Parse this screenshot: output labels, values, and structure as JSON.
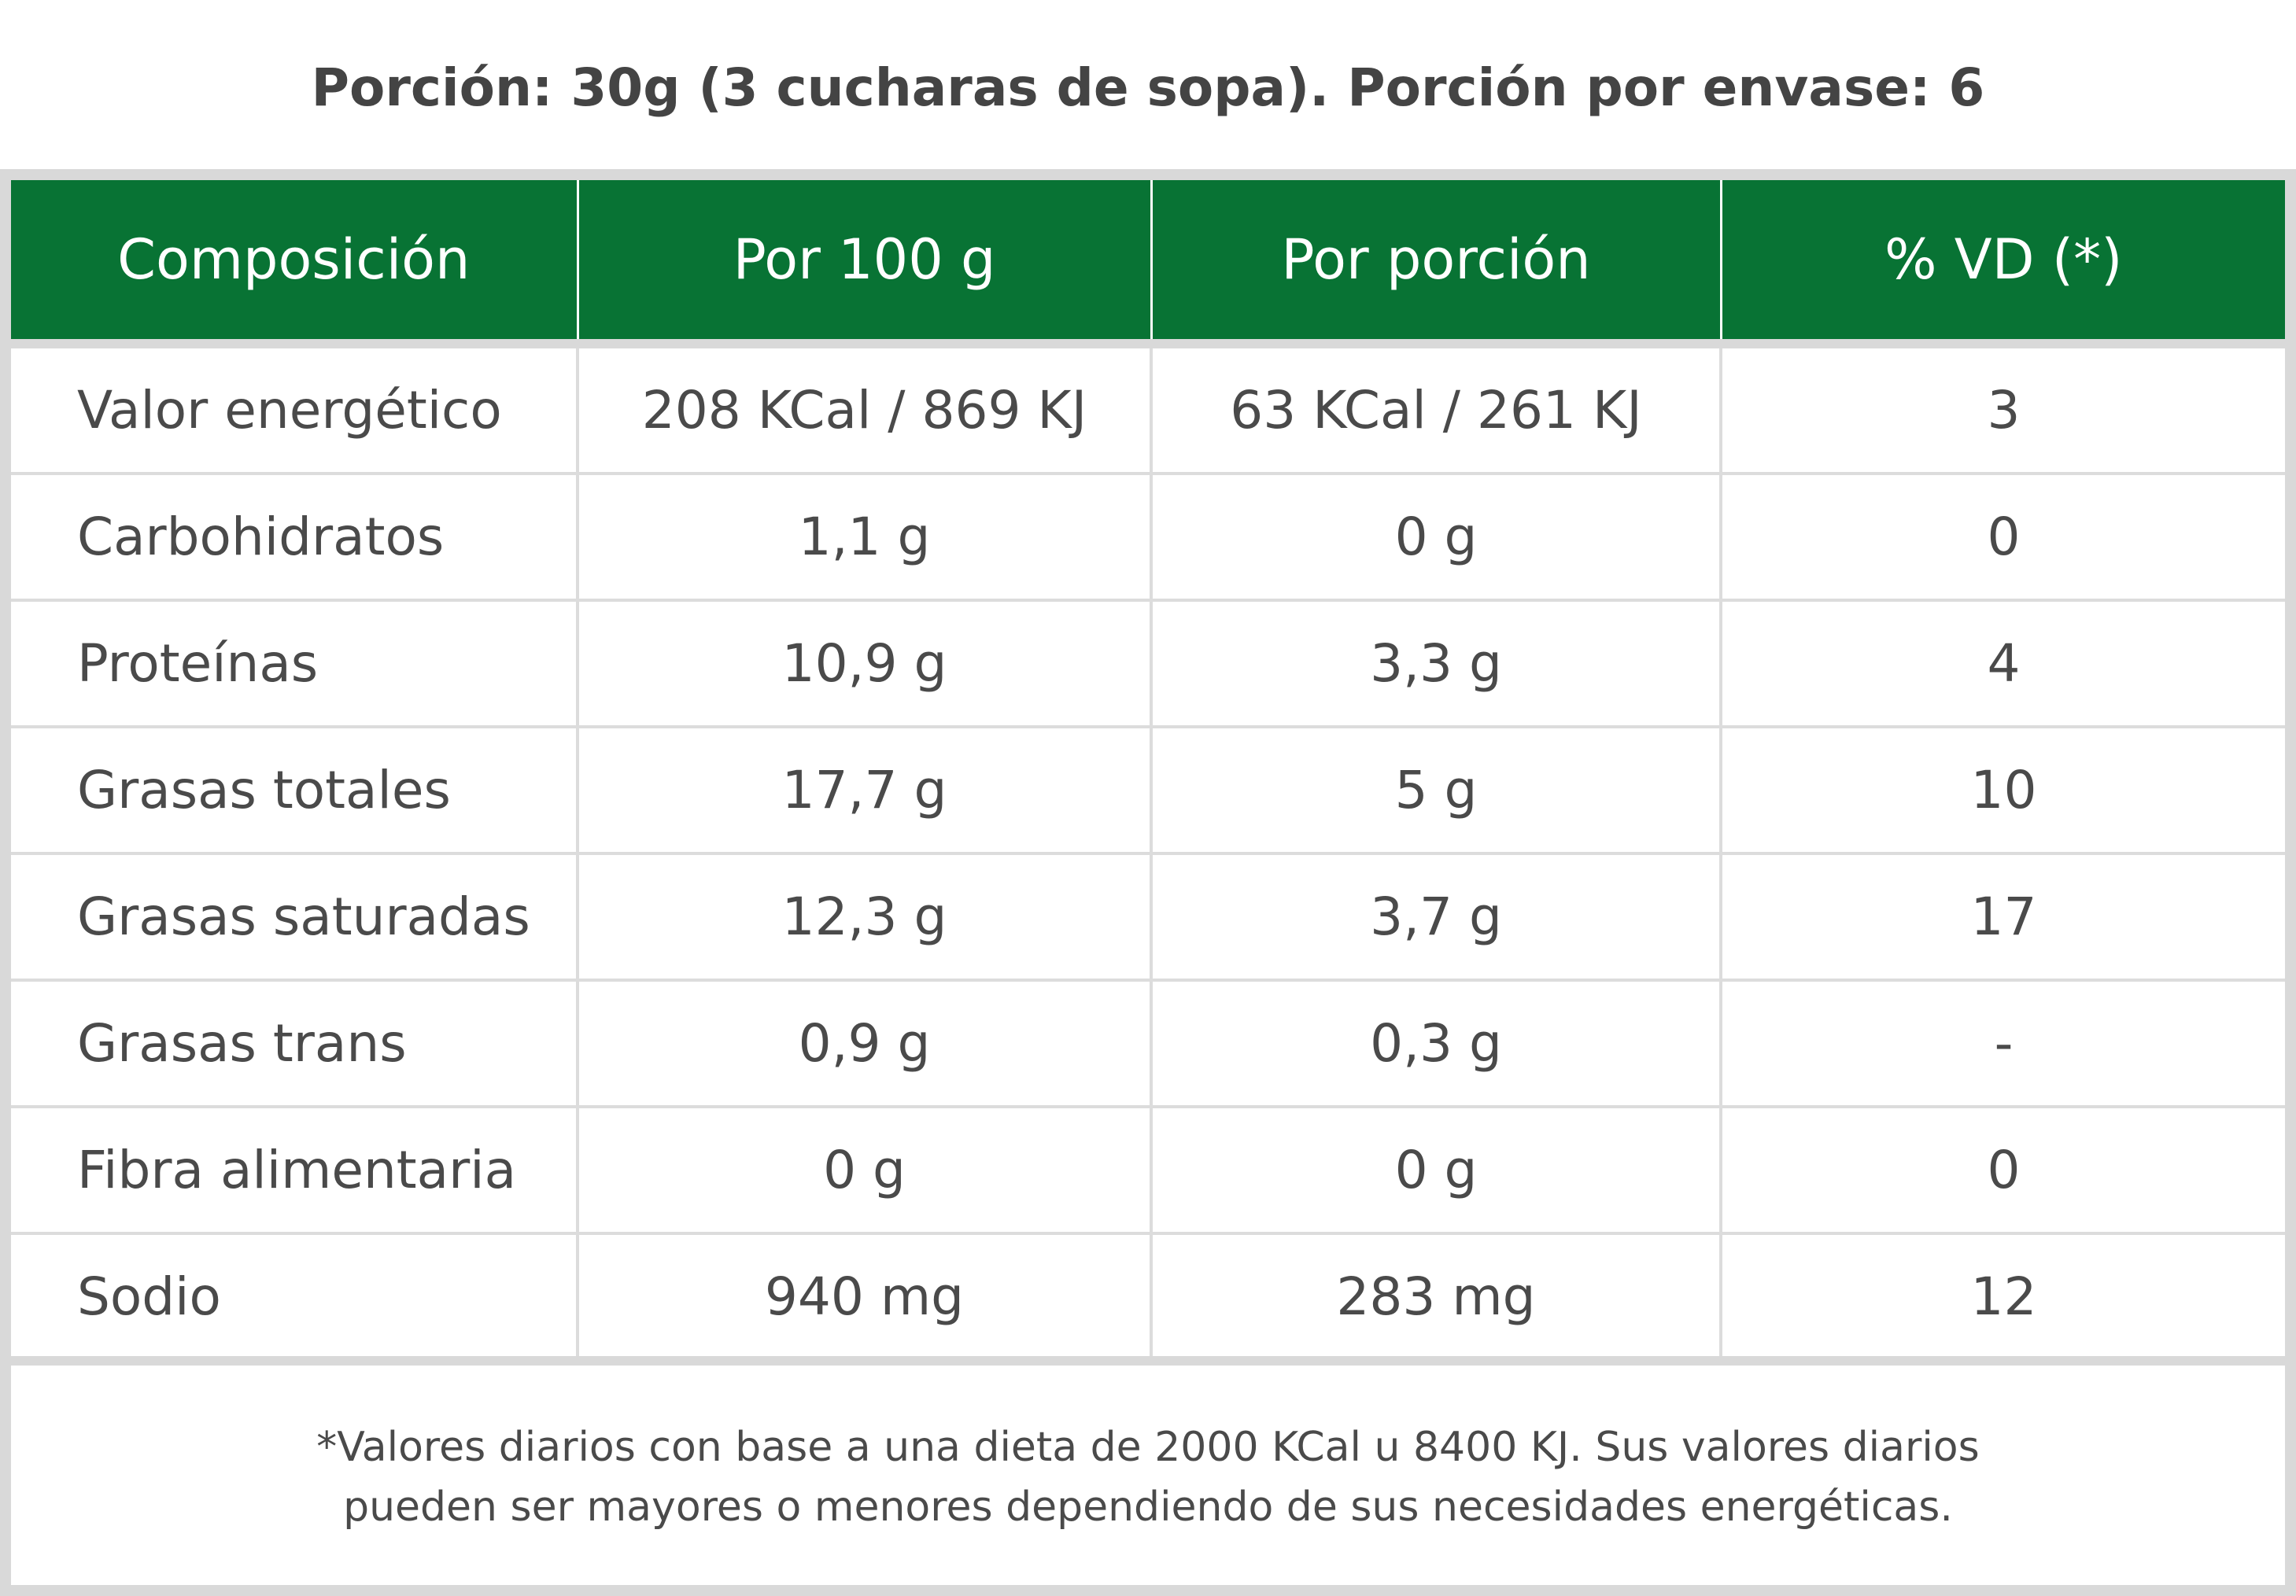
{
  "serving_info": "Porción: 30g (3 cucharas de sopa). Porción por envase: 6",
  "colors": {
    "header_background": "#087334",
    "header_text": "#ffffff",
    "border": "#d9d9d9",
    "body_text": "#4a4a4a"
  },
  "table": {
    "headers": [
      "Composición",
      "Por 100 g",
      "Por porción",
      "% VD (*)"
    ],
    "rows": [
      [
        "Valor energético",
        "208 KCal / 869 KJ",
        "63 KCal / 261 KJ",
        "3"
      ],
      [
        "Carbohidratos",
        "1,1 g",
        "0 g",
        "0"
      ],
      [
        "Proteínas",
        "10,9 g",
        "3,3 g",
        "4"
      ],
      [
        "Grasas totales",
        "17,7 g",
        "5 g",
        "10"
      ],
      [
        "Grasas saturadas",
        "12,3 g",
        "3,7 g",
        "17"
      ],
      [
        "Grasas trans",
        "0,9 g",
        "0,3 g",
        "-"
      ],
      [
        "Fibra alimentaria",
        "0 g",
        "0 g",
        "0"
      ],
      [
        "Sodio",
        "940 mg",
        "283 mg",
        "12"
      ]
    ]
  },
  "footnote": {
    "line1": "*Valores diarios con base a una dieta de 2000 KCal u 8400 KJ. Sus valores diarios",
    "line2": "pueden ser mayores o menores dependiendo de sus necesidades energéticas."
  }
}
